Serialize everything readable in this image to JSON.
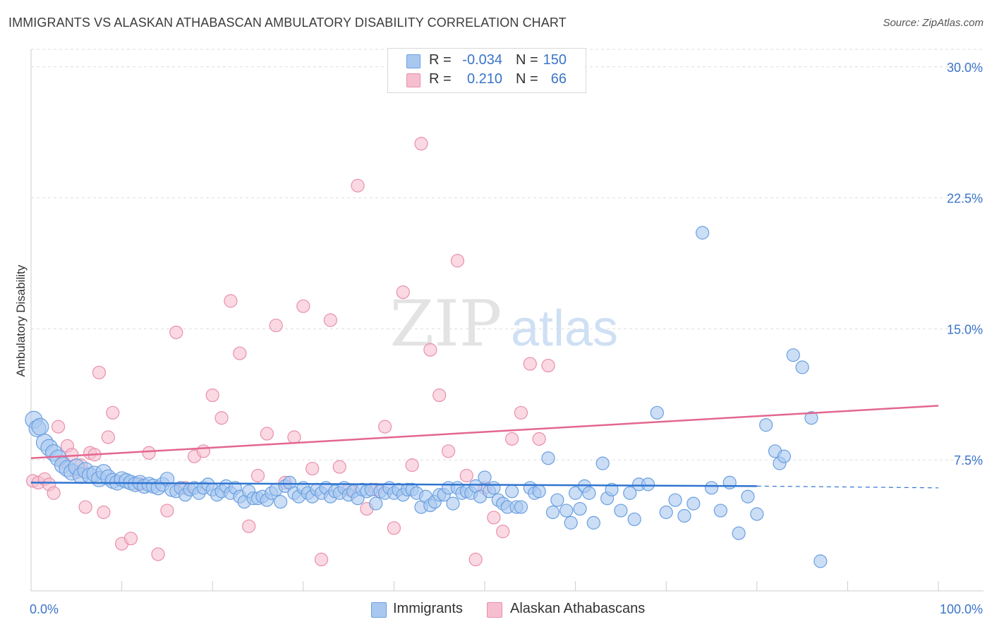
{
  "title": "IMMIGRANTS VS ALASKAN ATHABASCAN AMBULATORY DISABILITY CORRELATION CHART",
  "source": "Source: ZipAtlas.com",
  "watermark": {
    "zip": "ZIP",
    "atlas": "atlas"
  },
  "colors": {
    "blue_fill": "#a9c8f0",
    "blue_stroke": "#6a9fe0",
    "blue_line": "#2f74d0",
    "pink_fill": "#f6bfd0",
    "pink_stroke": "#e98fac",
    "pink_line": "#e3678f",
    "axis_text": "#3a74c9",
    "grid": "#dddddd"
  },
  "legend": {
    "rows": [
      {
        "r_label": "R =",
        "r_value": "-0.034",
        "n_label": "N =",
        "n_value": "150",
        "color": "#a9c8f0",
        "stroke": "#6a9fe0"
      },
      {
        "r_label": "R =",
        "r_value": "0.210",
        "n_label": "N =",
        "n_value": "66",
        "color": "#f6bfd0",
        "stroke": "#e98fac"
      }
    ]
  },
  "bottom_legend": [
    {
      "label": "Immigrants",
      "color": "#a9c8f0",
      "stroke": "#6a9fe0"
    },
    {
      "label": "Alaskan Athabascans",
      "color": "#f6bfd0",
      "stroke": "#e98fac"
    }
  ],
  "chart_data": {
    "type": "scatter",
    "title": "IMMIGRANTS VS ALASKAN ATHABASCAN AMBULATORY DISABILITY CORRELATION CHART",
    "xlabel": "",
    "ylabel": "Ambulatory Disability",
    "xlim": [
      0,
      100
    ],
    "ylim": [
      0,
      31
    ],
    "x_tick_labels": [
      {
        "value": 0,
        "label": "0.0%"
      },
      {
        "value": 100,
        "label": "100.0%"
      }
    ],
    "y_tick_labels": [
      {
        "value": 7.5,
        "label": "7.5%"
      },
      {
        "value": 15.0,
        "label": "15.0%"
      },
      {
        "value": 22.5,
        "label": "22.5%"
      },
      {
        "value": 30.0,
        "label": "30.0%"
      }
    ],
    "grid": "horizontal dashed",
    "series": [
      {
        "name": "Immigrants",
        "color": "#a9c8f0",
        "trend": {
          "x0": 0,
          "y0": 6.2,
          "x1": 80,
          "y1": 6.0,
          "dash_x1": 100,
          "dash_y1": 5.9
        },
        "points": [
          [
            0.3,
            9.8
          ],
          [
            0.7,
            9.3
          ],
          [
            1.0,
            9.4
          ],
          [
            1.5,
            8.5
          ],
          [
            2.0,
            8.2
          ],
          [
            2.5,
            7.9
          ],
          [
            3.0,
            7.6
          ],
          [
            3.5,
            7.2
          ],
          [
            4.0,
            7.0
          ],
          [
            4.5,
            6.8
          ],
          [
            5.0,
            7.1
          ],
          [
            5.5,
            6.6
          ],
          [
            6.0,
            6.9
          ],
          [
            6.5,
            6.6
          ],
          [
            7.0,
            6.7
          ],
          [
            7.5,
            6.4
          ],
          [
            8.0,
            6.8
          ],
          [
            8.5,
            6.5
          ],
          [
            9.0,
            6.3
          ],
          [
            9.5,
            6.2
          ],
          [
            10.0,
            6.4
          ],
          [
            10.5,
            6.3
          ],
          [
            11.0,
            6.2
          ],
          [
            11.5,
            6.1
          ],
          [
            12.0,
            6.2
          ],
          [
            12.5,
            6.0
          ],
          [
            13.0,
            6.1
          ],
          [
            13.5,
            6.0
          ],
          [
            14.0,
            5.9
          ],
          [
            14.5,
            6.1
          ],
          [
            15.0,
            6.4
          ],
          [
            15.5,
            5.8
          ],
          [
            16.0,
            5.7
          ],
          [
            16.5,
            5.9
          ],
          [
            17.0,
            5.5
          ],
          [
            17.5,
            5.8
          ],
          [
            18.0,
            5.9
          ],
          [
            18.5,
            5.6
          ],
          [
            19.0,
            5.9
          ],
          [
            19.5,
            6.1
          ],
          [
            20.0,
            5.8
          ],
          [
            20.5,
            5.5
          ],
          [
            21.0,
            5.7
          ],
          [
            21.5,
            6.0
          ],
          [
            22.0,
            5.6
          ],
          [
            22.5,
            5.9
          ],
          [
            23.0,
            5.4
          ],
          [
            23.5,
            5.1
          ],
          [
            24.0,
            5.7
          ],
          [
            24.5,
            5.3
          ],
          [
            25.0,
            5.3
          ],
          [
            25.5,
            5.4
          ],
          [
            26.0,
            5.2
          ],
          [
            26.5,
            5.6
          ],
          [
            27.0,
            5.8
          ],
          [
            27.5,
            5.1
          ],
          [
            28.0,
            6.0
          ],
          [
            28.5,
            6.2
          ],
          [
            29.0,
            5.6
          ],
          [
            29.5,
            5.4
          ],
          [
            30.0,
            5.9
          ],
          [
            30.5,
            5.6
          ],
          [
            31.0,
            5.4
          ],
          [
            31.5,
            5.8
          ],
          [
            32.0,
            5.6
          ],
          [
            32.5,
            5.9
          ],
          [
            33.0,
            5.4
          ],
          [
            33.5,
            5.7
          ],
          [
            34.0,
            5.6
          ],
          [
            34.5,
            5.9
          ],
          [
            35.0,
            5.5
          ],
          [
            35.5,
            5.7
          ],
          [
            36.0,
            5.3
          ],
          [
            36.5,
            5.8
          ],
          [
            37.0,
            5.7
          ],
          [
            37.5,
            5.8
          ],
          [
            38.0,
            5.0
          ],
          [
            38.5,
            5.7
          ],
          [
            39.0,
            5.6
          ],
          [
            39.5,
            5.9
          ],
          [
            40.0,
            5.6
          ],
          [
            40.5,
            5.8
          ],
          [
            41.0,
            5.5
          ],
          [
            41.5,
            5.8
          ],
          [
            42.0,
            5.8
          ],
          [
            42.5,
            5.6
          ],
          [
            43.0,
            4.8
          ],
          [
            43.5,
            5.4
          ],
          [
            44.0,
            4.9
          ],
          [
            44.5,
            5.1
          ],
          [
            45.0,
            5.5
          ],
          [
            45.5,
            5.5
          ],
          [
            46.0,
            5.9
          ],
          [
            46.5,
            5.0
          ],
          [
            47.0,
            5.9
          ],
          [
            47.5,
            5.6
          ],
          [
            48.0,
            5.7
          ],
          [
            48.5,
            5.6
          ],
          [
            49.0,
            6.0
          ],
          [
            49.5,
            5.4
          ],
          [
            50.0,
            6.5
          ],
          [
            50.5,
            5.7
          ],
          [
            51.0,
            5.9
          ],
          [
            51.5,
            5.2
          ],
          [
            52.0,
            5.0
          ],
          [
            52.5,
            4.8
          ],
          [
            53.0,
            5.7
          ],
          [
            53.5,
            4.8
          ],
          [
            54.0,
            4.8
          ],
          [
            55.0,
            5.9
          ],
          [
            55.5,
            5.6
          ],
          [
            56.0,
            5.7
          ],
          [
            57.0,
            7.6
          ],
          [
            57.5,
            4.5
          ],
          [
            58.0,
            5.2
          ],
          [
            59.0,
            4.6
          ],
          [
            59.5,
            3.9
          ],
          [
            60.0,
            5.6
          ],
          [
            60.5,
            4.7
          ],
          [
            61.0,
            6.0
          ],
          [
            61.5,
            5.6
          ],
          [
            62.0,
            3.9
          ],
          [
            63.0,
            7.3
          ],
          [
            63.5,
            5.3
          ],
          [
            64.0,
            5.8
          ],
          [
            65.0,
            4.6
          ],
          [
            66.0,
            5.6
          ],
          [
            66.5,
            4.1
          ],
          [
            67.0,
            6.1
          ],
          [
            68.0,
            6.1
          ],
          [
            69.0,
            10.2
          ],
          [
            70.0,
            4.5
          ],
          [
            71.0,
            5.2
          ],
          [
            72.0,
            4.3
          ],
          [
            73.0,
            5.0
          ],
          [
            74.0,
            20.5
          ],
          [
            75.0,
            5.9
          ],
          [
            76.0,
            4.6
          ],
          [
            77.0,
            6.2
          ],
          [
            78.0,
            3.3
          ],
          [
            79.0,
            5.4
          ],
          [
            80.0,
            4.4
          ],
          [
            81.0,
            9.5
          ],
          [
            82.0,
            8.0
          ],
          [
            82.5,
            7.3
          ],
          [
            83.0,
            7.7
          ],
          [
            84.0,
            13.5
          ],
          [
            85.0,
            12.8
          ],
          [
            86.0,
            9.9
          ],
          [
            87.0,
            1.7
          ]
        ]
      },
      {
        "name": "Alaskan Athabascans",
        "color": "#f6bfd0",
        "trend": {
          "x0": 0,
          "y0": 7.6,
          "x1": 100,
          "y1": 10.6
        },
        "points": [
          [
            0.2,
            6.3
          ],
          [
            0.8,
            6.2
          ],
          [
            1.5,
            6.4
          ],
          [
            2.0,
            6.1
          ],
          [
            2.5,
            5.6
          ],
          [
            3.0,
            9.4
          ],
          [
            3.5,
            7.4
          ],
          [
            4.0,
            8.3
          ],
          [
            4.5,
            7.8
          ],
          [
            5.0,
            6.8
          ],
          [
            5.5,
            7.2
          ],
          [
            6.0,
            4.8
          ],
          [
            6.5,
            7.9
          ],
          [
            7.0,
            7.8
          ],
          [
            7.5,
            12.5
          ],
          [
            8.0,
            4.5
          ],
          [
            8.5,
            8.8
          ],
          [
            9.0,
            10.2
          ],
          [
            10.0,
            2.7
          ],
          [
            11.0,
            3.0
          ],
          [
            12.0,
            6.1
          ],
          [
            13.0,
            7.9
          ],
          [
            14.0,
            2.1
          ],
          [
            15.0,
            4.6
          ],
          [
            16.0,
            14.8
          ],
          [
            17.0,
            5.9
          ],
          [
            18.0,
            7.7
          ],
          [
            19.0,
            8.0
          ],
          [
            20.0,
            11.2
          ],
          [
            21.0,
            9.9
          ],
          [
            22.0,
            16.6
          ],
          [
            23.0,
            13.6
          ],
          [
            24.0,
            3.7
          ],
          [
            25.0,
            6.6
          ],
          [
            26.0,
            9.0
          ],
          [
            27.0,
            15.2
          ],
          [
            28.0,
            6.2
          ],
          [
            29.0,
            8.8
          ],
          [
            30.0,
            16.3
          ],
          [
            31.0,
            7.0
          ],
          [
            32.0,
            1.8
          ],
          [
            33.0,
            15.5
          ],
          [
            34.0,
            7.1
          ],
          [
            35.0,
            5.8
          ],
          [
            36.0,
            23.2
          ],
          [
            37.0,
            4.7
          ],
          [
            38.0,
            5.8
          ],
          [
            39.0,
            9.4
          ],
          [
            40.0,
            3.6
          ],
          [
            41.0,
            17.1
          ],
          [
            42.0,
            7.2
          ],
          [
            43.0,
            25.6
          ],
          [
            44.0,
            13.8
          ],
          [
            45.0,
            11.2
          ],
          [
            46.0,
            8.0
          ],
          [
            47.0,
            18.9
          ],
          [
            48.0,
            6.6
          ],
          [
            49.0,
            1.8
          ],
          [
            50.0,
            5.9
          ],
          [
            51.0,
            4.2
          ],
          [
            52.0,
            3.4
          ],
          [
            53.0,
            8.7
          ],
          [
            54.0,
            10.2
          ],
          [
            55.0,
            13.0
          ],
          [
            56.0,
            8.7
          ],
          [
            57.0,
            12.9
          ]
        ]
      }
    ]
  }
}
